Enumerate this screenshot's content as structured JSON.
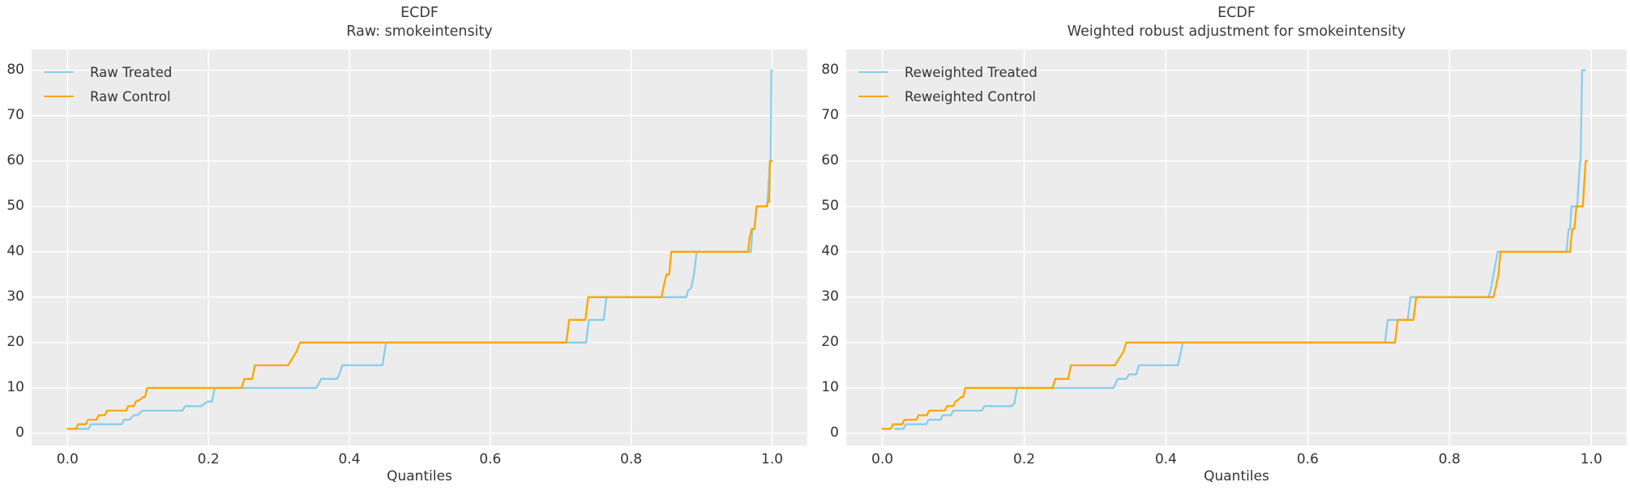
{
  "page": {
    "background": "#ffffff",
    "panel_background": "#ececec",
    "grid_color": "#ffffff",
    "text_color": "#333333"
  },
  "chart_data": [
    {
      "type": "line",
      "title_line1": "ECDF",
      "title_line2": "Raw: smokeintensity",
      "xlabel": "Quantiles",
      "x_ticks": [
        0.0,
        0.2,
        0.4,
        0.6,
        0.8,
        1.0
      ],
      "x_tick_labels": [
        "0.0",
        "0.2",
        "0.4",
        "0.6",
        "0.8",
        "1.0"
      ],
      "y_ticks": [
        0,
        10,
        20,
        30,
        40,
        50,
        60,
        70,
        80
      ],
      "y_tick_labels": [
        "0",
        "10",
        "20",
        "30",
        "40",
        "50",
        "60",
        "70",
        "80"
      ],
      "xlim": [
        -0.051,
        1.05
      ],
      "ylim": [
        -2.7,
        84.6
      ],
      "grid": true,
      "legend_position": "upper left",
      "panel_bg": "#ececec",
      "grid_color": "#ffffff",
      "series": [
        {
          "name": "Raw Treated",
          "color": "#87CEEB",
          "points": [
            [
              0.012,
              1
            ],
            [
              0.03,
              1
            ],
            [
              0.033,
              2
            ],
            [
              0.077,
              2
            ],
            [
              0.08,
              3
            ],
            [
              0.088,
              3
            ],
            [
              0.091,
              3.5
            ],
            [
              0.094,
              4
            ],
            [
              0.099,
              4
            ],
            [
              0.103,
              4.5
            ],
            [
              0.106,
              5
            ],
            [
              0.163,
              5
            ],
            [
              0.167,
              6
            ],
            [
              0.19,
              6
            ],
            [
              0.194,
              6.5
            ],
            [
              0.199,
              7
            ],
            [
              0.205,
              7
            ],
            [
              0.209,
              10
            ],
            [
              0.353,
              10
            ],
            [
              0.357,
              11
            ],
            [
              0.36,
              12
            ],
            [
              0.382,
              12
            ],
            [
              0.386,
              13
            ],
            [
              0.39,
              15
            ],
            [
              0.447,
              15
            ],
            [
              0.452,
              20
            ],
            [
              0.736,
              20
            ],
            [
              0.74,
              25
            ],
            [
              0.761,
              25
            ],
            [
              0.765,
              30
            ],
            [
              0.878,
              30
            ],
            [
              0.881,
              31.5
            ],
            [
              0.885,
              32
            ],
            [
              0.889,
              35
            ],
            [
              0.893,
              40
            ],
            [
              0.97,
              40
            ],
            [
              0.972,
              45
            ],
            [
              0.975,
              45
            ],
            [
              0.978,
              50
            ],
            [
              0.993,
              50
            ],
            [
              0.995,
              55
            ],
            [
              0.997,
              60
            ],
            [
              0.998,
              60
            ],
            [
              0.999,
              80
            ],
            [
              1.0,
              80
            ]
          ]
        },
        {
          "name": "Raw Control",
          "color": "#FFA500",
          "points": [
            [
              0.0,
              1
            ],
            [
              0.012,
              1
            ],
            [
              0.015,
              2
            ],
            [
              0.026,
              2
            ],
            [
              0.029,
              3
            ],
            [
              0.041,
              3
            ],
            [
              0.044,
              4
            ],
            [
              0.053,
              4
            ],
            [
              0.056,
              5
            ],
            [
              0.083,
              5
            ],
            [
              0.086,
              6
            ],
            [
              0.094,
              6
            ],
            [
              0.097,
              7
            ],
            [
              0.104,
              7.5
            ],
            [
              0.107,
              8
            ],
            [
              0.11,
              8
            ],
            [
              0.113,
              10
            ],
            [
              0.247,
              10
            ],
            [
              0.251,
              12
            ],
            [
              0.262,
              12
            ],
            [
              0.266,
              15
            ],
            [
              0.313,
              15
            ],
            [
              0.317,
              16
            ],
            [
              0.321,
              17
            ],
            [
              0.325,
              18
            ],
            [
              0.33,
              20
            ],
            [
              0.708,
              20
            ],
            [
              0.712,
              25
            ],
            [
              0.735,
              25
            ],
            [
              0.739,
              30
            ],
            [
              0.843,
              30
            ],
            [
              0.847,
              33
            ],
            [
              0.85,
              35
            ],
            [
              0.854,
              35
            ],
            [
              0.857,
              40
            ],
            [
              0.966,
              40
            ],
            [
              0.968,
              43
            ],
            [
              0.971,
              45
            ],
            [
              0.975,
              45
            ],
            [
              0.978,
              50
            ],
            [
              0.992,
              50
            ],
            [
              0.994,
              51
            ],
            [
              0.996,
              51
            ],
            [
              0.997,
              60
            ],
            [
              1.0,
              60
            ]
          ]
        }
      ]
    },
    {
      "type": "line",
      "title_line1": "ECDF",
      "title_line2": "Weighted robust adjustment for smokeintensity",
      "xlabel": "Quantiles",
      "x_ticks": [
        0.0,
        0.2,
        0.4,
        0.6,
        0.8,
        1.0
      ],
      "x_tick_labels": [
        "0.0",
        "0.2",
        "0.4",
        "0.6",
        "0.8",
        "1.0"
      ],
      "y_ticks": [
        0,
        10,
        20,
        30,
        40,
        50,
        60,
        70,
        80
      ],
      "y_tick_labels": [
        "0",
        "10",
        "20",
        "30",
        "40",
        "50",
        "60",
        "70",
        "80"
      ],
      "xlim": [
        -0.051,
        1.05
      ],
      "ylim": [
        -2.7,
        84.6
      ],
      "grid": true,
      "legend_position": "upper left",
      "panel_bg": "#ececec",
      "grid_color": "#ffffff",
      "series": [
        {
          "name": "Reweighted Treated",
          "color": "#87CEEB",
          "points": [
            [
              0.018,
              1
            ],
            [
              0.03,
              1
            ],
            [
              0.033,
              2
            ],
            [
              0.062,
              2
            ],
            [
              0.065,
              3
            ],
            [
              0.082,
              3
            ],
            [
              0.085,
              4
            ],
            [
              0.097,
              4
            ],
            [
              0.1,
              5
            ],
            [
              0.14,
              5
            ],
            [
              0.144,
              6
            ],
            [
              0.182,
              6
            ],
            [
              0.186,
              6.5
            ],
            [
              0.19,
              10
            ],
            [
              0.326,
              10
            ],
            [
              0.329,
              11
            ],
            [
              0.332,
              12
            ],
            [
              0.344,
              12
            ],
            [
              0.348,
              13
            ],
            [
              0.358,
              13
            ],
            [
              0.362,
              15
            ],
            [
              0.417,
              15
            ],
            [
              0.424,
              20
            ],
            [
              0.709,
              20
            ],
            [
              0.713,
              25
            ],
            [
              0.741,
              25
            ],
            [
              0.745,
              30
            ],
            [
              0.855,
              30
            ],
            [
              0.858,
              31.5
            ],
            [
              0.862,
              35
            ],
            [
              0.868,
              40
            ],
            [
              0.965,
              40
            ],
            [
              0.968,
              45
            ],
            [
              0.97,
              45
            ],
            [
              0.972,
              50
            ],
            [
              0.98,
              50
            ],
            [
              0.982,
              55
            ],
            [
              0.984,
              60
            ],
            [
              0.985,
              60
            ],
            [
              0.987,
              80
            ],
            [
              0.991,
              80
            ]
          ]
        },
        {
          "name": "Reweighted Control",
          "color": "#FFA500",
          "points": [
            [
              0.0,
              1
            ],
            [
              0.012,
              1
            ],
            [
              0.015,
              2
            ],
            [
              0.028,
              2
            ],
            [
              0.031,
              3
            ],
            [
              0.048,
              3
            ],
            [
              0.051,
              4
            ],
            [
              0.063,
              4
            ],
            [
              0.066,
              5
            ],
            [
              0.088,
              5
            ],
            [
              0.091,
              6
            ],
            [
              0.1,
              6
            ],
            [
              0.103,
              7
            ],
            [
              0.108,
              7.5
            ],
            [
              0.111,
              8
            ],
            [
              0.114,
              8
            ],
            [
              0.117,
              10
            ],
            [
              0.24,
              10
            ],
            [
              0.244,
              12
            ],
            [
              0.262,
              12
            ],
            [
              0.266,
              15
            ],
            [
              0.328,
              15
            ],
            [
              0.332,
              16
            ],
            [
              0.336,
              17
            ],
            [
              0.34,
              18
            ],
            [
              0.344,
              20
            ],
            [
              0.723,
              20
            ],
            [
              0.727,
              25
            ],
            [
              0.749,
              25
            ],
            [
              0.753,
              30
            ],
            [
              0.862,
              30
            ],
            [
              0.865,
              32
            ],
            [
              0.869,
              35
            ],
            [
              0.872,
              40
            ],
            [
              0.97,
              40
            ],
            [
              0.973,
              45
            ],
            [
              0.976,
              45
            ],
            [
              0.979,
              50
            ],
            [
              0.988,
              50
            ],
            [
              0.99,
              55
            ],
            [
              0.992,
              60
            ],
            [
              0.994,
              60
            ]
          ]
        }
      ]
    }
  ]
}
